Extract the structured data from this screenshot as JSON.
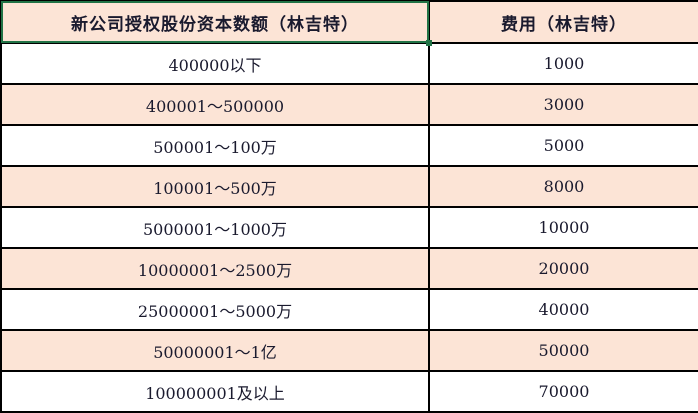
{
  "table": {
    "headers": [
      "新公司授权股份资本数额（林吉特）",
      "费用（林吉特）"
    ],
    "rows": [
      [
        "400000以下",
        "1000"
      ],
      [
        "400001～500000",
        "3000"
      ],
      [
        "500001～100万",
        "5000"
      ],
      [
        "100001～500万",
        "8000"
      ],
      [
        "5000001～1000万",
        "10000"
      ],
      [
        "10000001～2500万",
        "20000"
      ],
      [
        "25000001～5000万",
        "40000"
      ],
      [
        "50000001～1亿",
        "50000"
      ],
      [
        "100000001及以上",
        "70000"
      ]
    ]
  },
  "colors": {
    "header_bg": "#fce4d6",
    "alt_row_bg": "#fce4d6",
    "selection": "#217346"
  }
}
